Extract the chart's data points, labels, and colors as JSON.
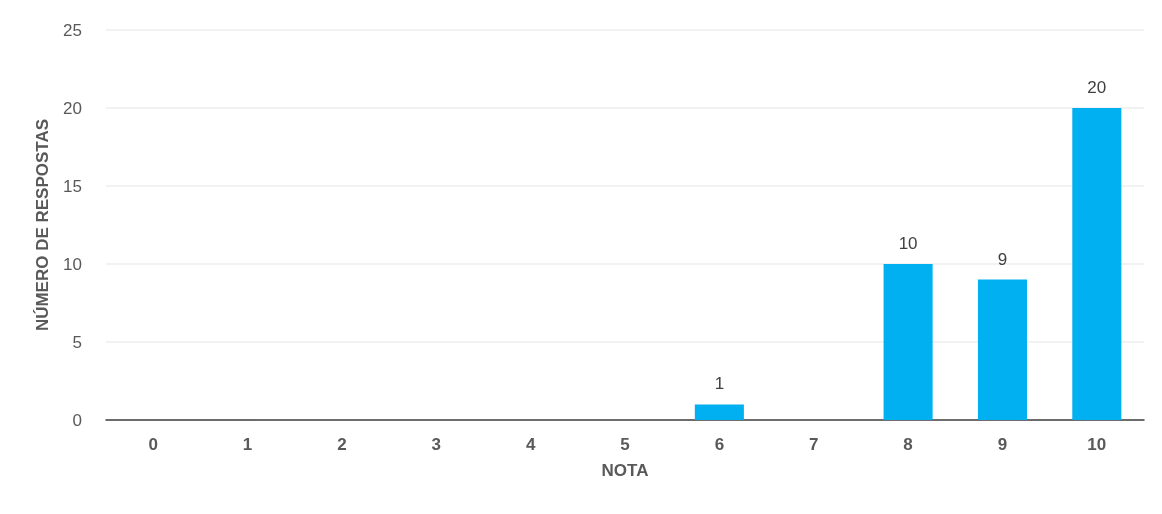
{
  "chart_data": {
    "type": "bar",
    "xlabel": "NOTA",
    "ylabel": "NÚMERO DE RESPOSTAS",
    "categories": [
      "0",
      "1",
      "2",
      "3",
      "4",
      "5",
      "6",
      "7",
      "8",
      "9",
      "10"
    ],
    "values": [
      0,
      0,
      0,
      0,
      0,
      0,
      1,
      0,
      10,
      9,
      20
    ],
    "value_labels": [
      null,
      null,
      null,
      null,
      null,
      null,
      "1",
      null,
      "10",
      "9",
      "20"
    ],
    "color": "#00b0f0",
    "ylim": [
      0,
      25
    ],
    "yticks": [
      0,
      5,
      10,
      15,
      20,
      25
    ],
    "grid": "y"
  }
}
